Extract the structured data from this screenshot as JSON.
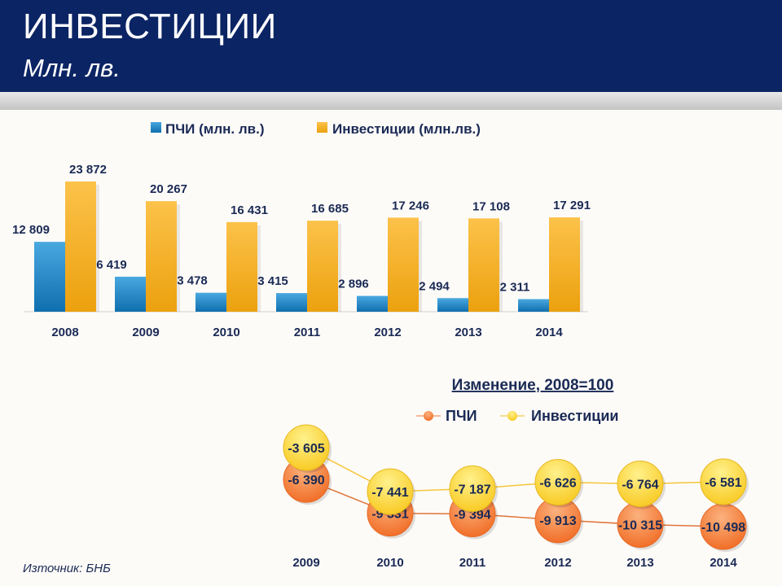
{
  "header": {
    "title": "ИНВЕСТИЦИИ",
    "subtitle": "Млн. лв."
  },
  "source": "Източник: БНБ",
  "colors": {
    "header": "#0b2464",
    "pci": "#1a86c8",
    "investments": "#f6b21c",
    "pci_dot": "#f57f3a",
    "inv_dot": "#fbd93c",
    "text": "#1a2a55"
  },
  "chart_data": [
    {
      "type": "bar",
      "title": "",
      "categories": [
        "2008",
        "2009",
        "2010",
        "2011",
        "2012",
        "2013",
        "2014"
      ],
      "series": [
        {
          "name": "ПЧИ (млн. лв.)",
          "values": [
            12809,
            6419,
            3478,
            3415,
            2896,
            2494,
            2311
          ],
          "labels": [
            "12 809",
            "6 419",
            "3 478",
            "3 415",
            "2 896",
            "2 494",
            "2 311"
          ]
        },
        {
          "name": "Инвестиции (млн.лв.)",
          "values": [
            23872,
            20267,
            16431,
            16685,
            17246,
            17108,
            17291
          ],
          "labels": [
            "23 872",
            "20 267",
            "16 431",
            "16 685",
            "17 246",
            "17 108",
            "17 291"
          ]
        }
      ],
      "legend": "top",
      "ylim": [
        0,
        23872
      ]
    },
    {
      "type": "line",
      "title": "Изменение, 2008=100",
      "categories": [
        "2009",
        "2010",
        "2011",
        "2012",
        "2013",
        "2014"
      ],
      "series": [
        {
          "name": "ПЧИ",
          "values": [
            -6390,
            -9331,
            -9394,
            -9913,
            -10315,
            -10498
          ],
          "labels": [
            "-6 390",
            "-9 331",
            "-9 394",
            "-9 913",
            "-10 315",
            "-10 498"
          ]
        },
        {
          "name": "Инвестиции",
          "values": [
            -3605,
            -7441,
            -7187,
            -6626,
            -6764,
            -6581
          ],
          "labels": [
            "-3 605",
            "-7 441",
            "-7 187",
            "-6 626",
            "-6 764",
            "-6 581"
          ]
        }
      ],
      "legend": "top"
    }
  ]
}
